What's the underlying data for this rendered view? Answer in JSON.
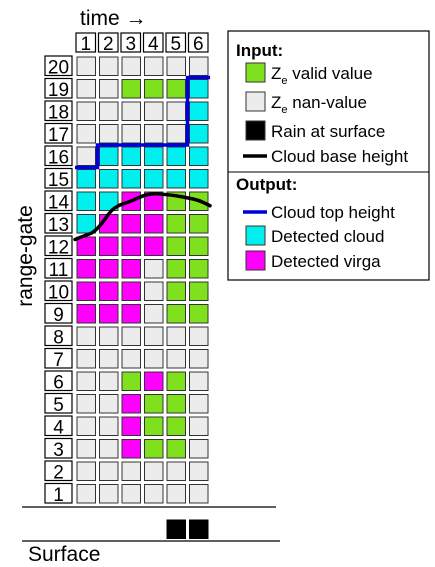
{
  "x_axis": {
    "label": "time →",
    "ticks": [
      "1",
      "2",
      "3",
      "4",
      "5",
      "6"
    ]
  },
  "y_axis": {
    "label": "range-gate",
    "ticks": [
      "1",
      "2",
      "3",
      "4",
      "5",
      "6",
      "7",
      "8",
      "9",
      "10",
      "11",
      "12",
      "13",
      "14",
      "15",
      "16",
      "17",
      "18",
      "19",
      "20"
    ]
  },
  "surface_label": "Surface",
  "colors": {
    "valid": "#7fe01e",
    "nan": "#ececec",
    "rain": "#000000",
    "cloud": "#00f0f0",
    "virga": "#ff00ff",
    "cloud_top_line": "#0000dd",
    "cloud_base_line": "#000000"
  },
  "legend": {
    "input_header": "Input:",
    "output_header": "Output:",
    "items": [
      {
        "key": "valid",
        "label_main": "Z",
        "label_sub": "e",
        "label_rest": " valid value",
        "marker": "box"
      },
      {
        "key": "nan",
        "label_main": "Z",
        "label_sub": "e",
        "label_rest": " nan-value",
        "marker": "box"
      },
      {
        "key": "rain",
        "label_main": "Rain at surface",
        "label_sub": "",
        "label_rest": "",
        "marker": "box"
      },
      {
        "key": "cloud_base_line",
        "label_main": "Cloud base height",
        "label_sub": "",
        "label_rest": "",
        "marker": "line"
      },
      {
        "key": "cloud_top_line",
        "label_main": "Cloud top height",
        "label_sub": "",
        "label_rest": "",
        "marker": "line"
      },
      {
        "key": "cloud",
        "label_main": "Detected cloud",
        "label_sub": "",
        "label_rest": "",
        "marker": "box"
      },
      {
        "key": "virga",
        "label_main": "Detected virga",
        "label_sub": "",
        "label_rest": "",
        "marker": "box"
      }
    ]
  },
  "grid": {
    "note": "rows listed from gate 20 (top) to gate 1 (bottom); columns are time 1-6. V=valid, N=nan, C=cloud, M=virga",
    "rows": [
      "NNNNNN",
      "NNVVVC",
      "NNNNNC",
      "NNNNNC",
      "NCCCCC",
      "CCCCCC",
      "CCMMVV",
      "CMMMVV",
      "MMMMVV",
      "MMMNVV",
      "MMMNVV",
      "MMMNVV",
      "NNNNNN",
      "NNNNNN",
      "NNVMVN",
      "NNMVVN",
      "NNMVVN",
      "NNMVVN",
      "NNNNNN",
      "NNNNNN"
    ]
  },
  "rain_at_surface": [
    false,
    false,
    false,
    false,
    true,
    true
  ],
  "cloud_top_height": [
    15.5,
    16.5,
    16.5,
    16.5,
    16.5,
    19.5
  ],
  "cloud_base_height": [
    [
      0.0,
      12.3
    ],
    [
      0.5,
      12.5
    ],
    [
      0.8,
      12.6
    ],
    [
      1.2,
      13.0
    ],
    [
      1.6,
      13.6
    ],
    [
      2.0,
      13.85
    ],
    [
      2.5,
      14.0
    ],
    [
      3.0,
      14.25
    ],
    [
      3.5,
      14.35
    ],
    [
      4.0,
      14.3
    ],
    [
      4.5,
      14.25
    ],
    [
      5.0,
      14.15
    ],
    [
      5.5,
      14.05
    ],
    [
      6.0,
      13.8
    ]
  ]
}
